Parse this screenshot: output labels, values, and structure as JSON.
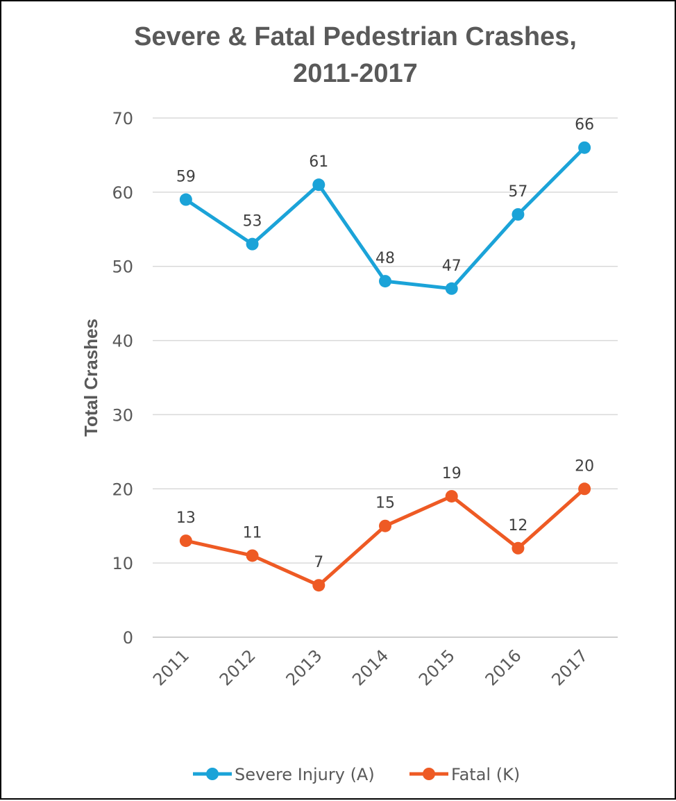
{
  "chart_data": {
    "type": "line",
    "title_lines": [
      "Severe & Fatal Pedestrian Crashes,",
      "2011-2017"
    ],
    "xlabel": "",
    "ylabel": "Total Crashes",
    "x": [
      "2011",
      "2012",
      "2013",
      "2014",
      "2015",
      "2016",
      "2017"
    ],
    "ylim": [
      0,
      70
    ],
    "yticks": [
      0,
      10,
      20,
      30,
      40,
      50,
      60,
      70
    ],
    "grid": true,
    "legend_position": "bottom",
    "series": [
      {
        "name": "Severe Injury (A)",
        "color": "#1BA3D8",
        "values": [
          59,
          53,
          61,
          48,
          47,
          57,
          66
        ]
      },
      {
        "name": "Fatal (K)",
        "color": "#EE5A24",
        "values": [
          13,
          11,
          7,
          15,
          19,
          12,
          20
        ]
      }
    ]
  }
}
